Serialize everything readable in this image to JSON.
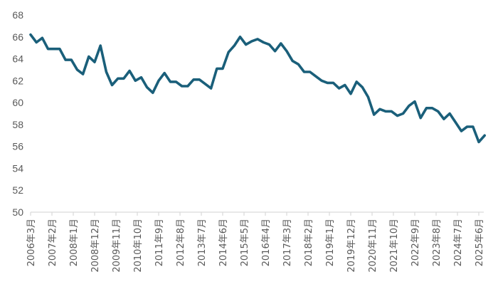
{
  "chart_data": {
    "type": "line",
    "title": "",
    "xlabel": "",
    "ylabel": "",
    "ylim": [
      50,
      68
    ],
    "yticks": [
      50,
      52,
      54,
      56,
      58,
      60,
      62,
      64,
      66,
      68
    ],
    "grid": false,
    "legend": null,
    "x_tick_labels": [
      "2006年3月",
      "2007年2月",
      "2008年1月",
      "2008年12月",
      "2009年11月",
      "2010年10月",
      "2011年9月",
      "2012年8月",
      "2013年7月",
      "2014年6月",
      "2015年5月",
      "2016年4月",
      "2017年3月",
      "2018年2月",
      "2019年1月",
      "2019年12月",
      "2020年11月",
      "2021年10月",
      "2022年9月",
      "2023年8月",
      "2024年7月",
      "2025年6月"
    ],
    "x_start": "2006年3月",
    "x_frequency": "quarterly",
    "series": [
      {
        "name": "",
        "color": "#1a5f7a",
        "values": [
          66.2,
          65.5,
          65.9,
          64.9,
          64.9,
          64.9,
          63.9,
          63.9,
          63.0,
          62.6,
          64.2,
          63.7,
          65.2,
          62.8,
          61.6,
          62.2,
          62.2,
          62.9,
          62.0,
          62.3,
          61.4,
          60.9,
          62.0,
          62.7,
          61.9,
          61.9,
          61.5,
          61.5,
          62.1,
          62.1,
          61.7,
          61.3,
          63.1,
          63.1,
          64.6,
          65.2,
          66.0,
          65.3,
          65.6,
          65.8,
          65.5,
          65.3,
          64.7,
          65.4,
          64.7,
          63.8,
          63.5,
          62.8,
          62.8,
          62.4,
          62.0,
          61.8,
          61.8,
          61.3,
          61.6,
          60.8,
          61.9,
          61.4,
          60.5,
          58.9,
          59.4,
          59.2,
          59.2,
          58.8,
          59.0,
          59.7,
          60.1,
          58.6,
          59.5,
          59.5,
          59.2,
          58.5,
          59.0,
          58.2,
          57.4,
          57.8,
          57.8,
          56.4,
          57.0
        ]
      }
    ]
  },
  "style": {
    "line_color": "#1a5f7a",
    "axis_color": "#d9d9d9",
    "tick_text_color": "#595959"
  }
}
